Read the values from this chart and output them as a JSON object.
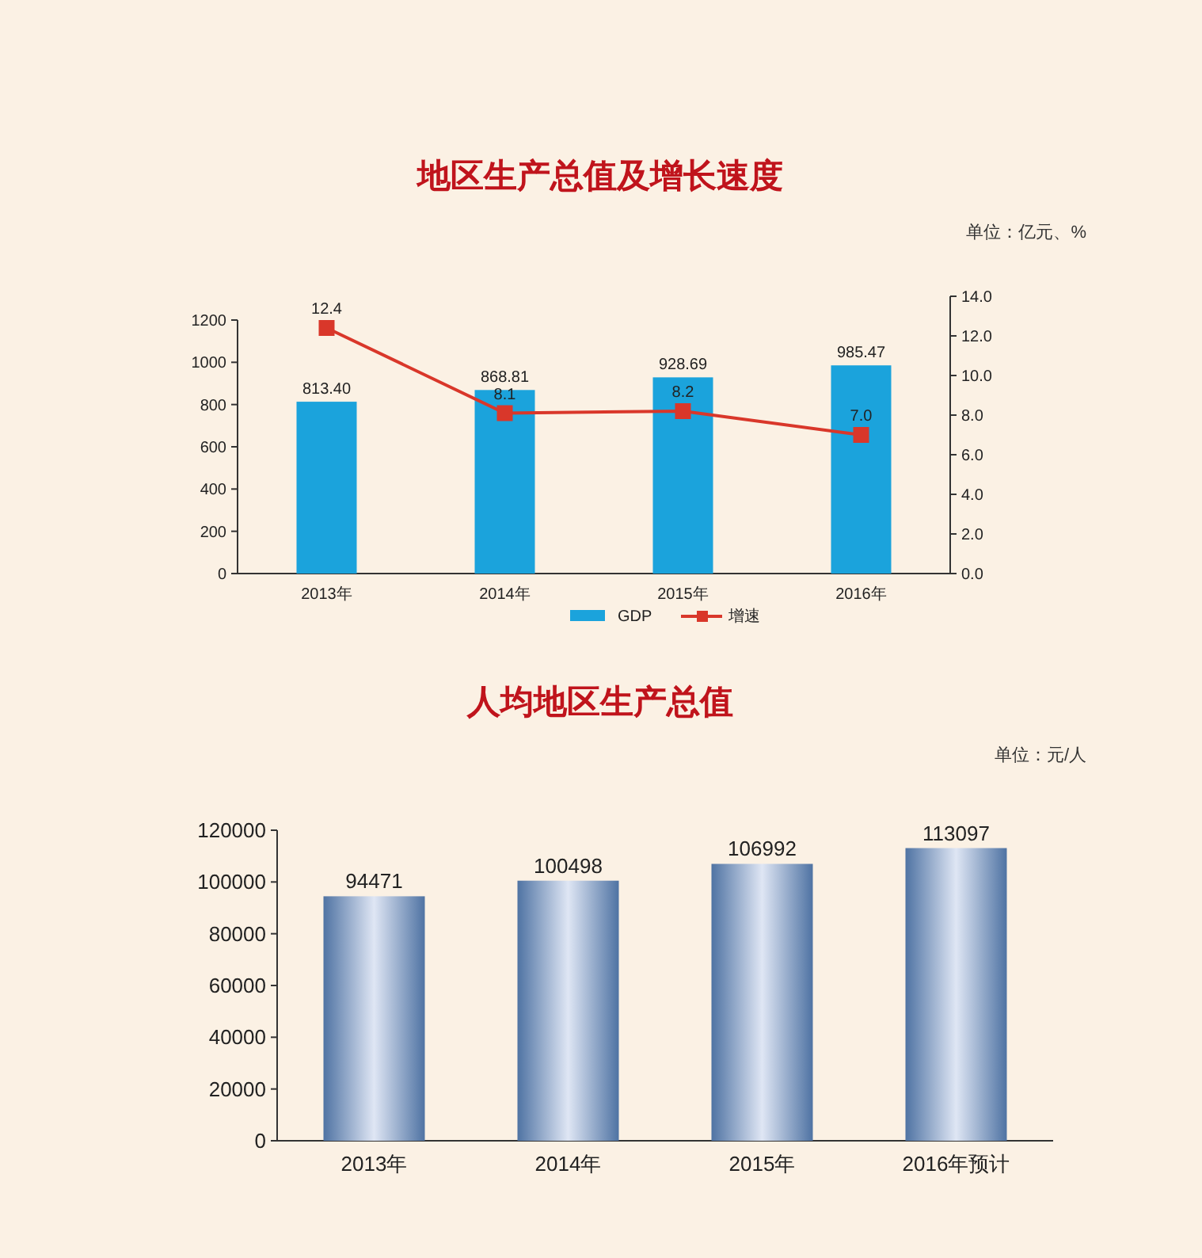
{
  "chart_data": [
    {
      "type": "bar",
      "title": "地区生产总值及增长速度",
      "subtitle": "单位：亿元、%",
      "categories": [
        "2013年",
        "2014年",
        "2015年",
        "2016年"
      ],
      "series": [
        {
          "name": "GDP",
          "color": "#1ba3dc",
          "values": [
            813.4,
            868.81,
            928.69,
            985.47
          ],
          "value_labels": [
            "813.40",
            "868.81",
            "928.69",
            "985.47"
          ]
        },
        {
          "name": "增速",
          "type": "line",
          "axis": "y2",
          "color": "#d9372a",
          "values": [
            12.4,
            8.1,
            8.2,
            7.0
          ],
          "value_labels": [
            "12.4",
            "8.1",
            "8.2",
            "7.0"
          ]
        }
      ],
      "ylim": [
        0,
        1200
      ],
      "yticks": [
        0,
        200,
        400,
        600,
        800,
        1000,
        1200
      ],
      "y2lim": [
        0,
        14
      ],
      "y2ticks": [
        {
          "value": 0,
          "label": "0.0"
        },
        {
          "value": 2,
          "label": "2.0"
        },
        {
          "value": 4,
          "label": "4.0"
        },
        {
          "value": 6,
          "label": "6.0"
        },
        {
          "value": 8,
          "label": "8.0"
        },
        {
          "value": 10,
          "label": "10.0"
        },
        {
          "value": 12,
          "label": "12.0"
        },
        {
          "value": 14,
          "label": "14.0"
        }
      ],
      "marker": "square",
      "legend": "bottom",
      "grid": false
    },
    {
      "type": "bar",
      "title": "人均地区生产总值",
      "subtitle": "单位：元/人",
      "categories": [
        "2013年",
        "2014年",
        "2015年",
        "2016年预计"
      ],
      "series": [
        {
          "color": "#4f73a3",
          "values": [
            94471,
            100498,
            106992,
            113097
          ]
        }
      ],
      "data_labels": true,
      "ylim": [
        0,
        120000
      ],
      "yticks": [
        0,
        20000,
        40000,
        60000,
        80000,
        100000,
        120000
      ],
      "grid": false
    }
  ]
}
